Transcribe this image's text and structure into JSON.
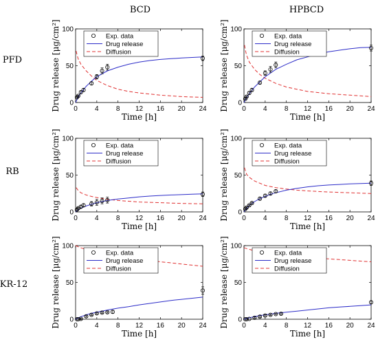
{
  "column_titles": [
    "BCD",
    "HPBCD"
  ],
  "row_labels": [
    "PFD",
    "RB",
    "KR-12"
  ],
  "xlabel": "Time [h]",
  "ylabel": "Drug release [μg/cm²]",
  "legend": {
    "exp": "Exp. data",
    "release": "Drug release",
    "diffusion": "Diffusion"
  },
  "colors": {
    "release": "#2b2bc8",
    "diffusion": "#e03030",
    "exp": "#000000"
  },
  "chart_data": [
    {
      "type": "line",
      "panel": "PFD BCD",
      "xlim": [
        0,
        24
      ],
      "ylim": [
        0,
        100
      ],
      "xticks": [
        0,
        4,
        8,
        12,
        16,
        20,
        24
      ],
      "yticks": [
        0,
        50,
        100
      ],
      "legend_position": "top-right",
      "exp_data": [
        [
          0.25,
          7
        ],
        [
          0.5,
          9
        ],
        [
          1,
          14
        ],
        [
          1.5,
          17
        ],
        [
          3,
          26
        ],
        [
          4,
          35
        ],
        [
          5,
          43
        ],
        [
          6,
          48
        ],
        [
          24,
          60
        ]
      ],
      "exp_err": [
        1,
        1,
        2,
        2,
        2,
        3,
        4,
        4,
        3
      ],
      "release_curve": [
        [
          0,
          0
        ],
        [
          0.5,
          8
        ],
        [
          1,
          13
        ],
        [
          2,
          22
        ],
        [
          3,
          29
        ],
        [
          4,
          35
        ],
        [
          5,
          39
        ],
        [
          6,
          43
        ],
        [
          8,
          48
        ],
        [
          10,
          52
        ],
        [
          12,
          55
        ],
        [
          14,
          57
        ],
        [
          16,
          58.5
        ],
        [
          18,
          59.5
        ],
        [
          20,
          60.5
        ],
        [
          22,
          61.2
        ],
        [
          24,
          62
        ]
      ],
      "diffusion_curve": [
        [
          0.1,
          70
        ],
        [
          0.3,
          64
        ],
        [
          0.5,
          59
        ],
        [
          1,
          52
        ],
        [
          2,
          43
        ],
        [
          3,
          36
        ],
        [
          4,
          30
        ],
        [
          6,
          23
        ],
        [
          8,
          18
        ],
        [
          10,
          15
        ],
        [
          12,
          13
        ],
        [
          16,
          10
        ],
        [
          20,
          8
        ],
        [
          24,
          7
        ]
      ]
    },
    {
      "type": "line",
      "panel": "PFD HPBCD",
      "xlim": [
        0,
        24
      ],
      "ylim": [
        0,
        100
      ],
      "xticks": [
        0,
        4,
        8,
        12,
        16,
        20,
        24
      ],
      "yticks": [
        0,
        50,
        100
      ],
      "legend_position": "top-right",
      "exp_data": [
        [
          0.25,
          5
        ],
        [
          0.5,
          8
        ],
        [
          1,
          13
        ],
        [
          1.5,
          17
        ],
        [
          3,
          27
        ],
        [
          4,
          40
        ],
        [
          5,
          45
        ],
        [
          6,
          51
        ],
        [
          24,
          74
        ]
      ],
      "exp_err": [
        1,
        1,
        2,
        2,
        2,
        3,
        4,
        4,
        4
      ],
      "release_curve": [
        [
          0,
          0
        ],
        [
          0.5,
          7
        ],
        [
          1,
          12
        ],
        [
          2,
          21
        ],
        [
          3,
          28
        ],
        [
          4,
          35
        ],
        [
          5,
          40
        ],
        [
          6,
          45
        ],
        [
          8,
          52
        ],
        [
          10,
          58
        ],
        [
          12,
          62
        ],
        [
          14,
          66
        ],
        [
          16,
          69
        ],
        [
          18,
          71
        ],
        [
          20,
          73
        ],
        [
          22,
          74.5
        ],
        [
          24,
          75
        ]
      ],
      "diffusion_curve": [
        [
          0.1,
          78
        ],
        [
          0.3,
          70
        ],
        [
          0.5,
          64
        ],
        [
          1,
          55
        ],
        [
          2,
          45
        ],
        [
          3,
          38
        ],
        [
          4,
          33
        ],
        [
          6,
          26
        ],
        [
          8,
          21
        ],
        [
          10,
          18
        ],
        [
          12,
          15
        ],
        [
          16,
          12
        ],
        [
          20,
          10
        ],
        [
          24,
          8
        ]
      ]
    },
    {
      "type": "line",
      "panel": "RB BCD",
      "xlim": [
        0,
        24
      ],
      "ylim": [
        0,
        100
      ],
      "xticks": [
        0,
        4,
        8,
        12,
        16,
        20,
        24
      ],
      "yticks": [
        0,
        50,
        100
      ],
      "legend_position": "top-right",
      "exp_data": [
        [
          0.25,
          3
        ],
        [
          0.5,
          5
        ],
        [
          1,
          7
        ],
        [
          1.5,
          9
        ],
        [
          3,
          11
        ],
        [
          4,
          13
        ],
        [
          5,
          15
        ],
        [
          6,
          16
        ],
        [
          24,
          24
        ]
      ],
      "exp_err": [
        1,
        1,
        2,
        2,
        3,
        4,
        4,
        4,
        3
      ],
      "release_curve": [
        [
          0,
          0
        ],
        [
          0.5,
          3
        ],
        [
          1,
          5
        ],
        [
          2,
          8
        ],
        [
          3,
          10.5
        ],
        [
          4,
          12.5
        ],
        [
          5,
          14
        ],
        [
          6,
          15.5
        ],
        [
          8,
          17.5
        ],
        [
          10,
          19
        ],
        [
          12,
          20.5
        ],
        [
          14,
          21.5
        ],
        [
          16,
          22.3
        ],
        [
          18,
          23
        ],
        [
          20,
          23.5
        ],
        [
          22,
          24
        ],
        [
          24,
          24.5
        ]
      ],
      "diffusion_curve": [
        [
          0.1,
          33
        ],
        [
          0.3,
          31
        ],
        [
          0.5,
          29
        ],
        [
          1,
          26
        ],
        [
          2,
          23
        ],
        [
          3,
          21
        ],
        [
          4,
          19.5
        ],
        [
          6,
          17
        ],
        [
          8,
          15.5
        ],
        [
          10,
          14.5
        ],
        [
          12,
          13.5
        ],
        [
          16,
          12.5
        ],
        [
          20,
          11.5
        ],
        [
          24,
          11
        ]
      ]
    },
    {
      "type": "line",
      "panel": "RB HPBCD",
      "xlim": [
        0,
        24
      ],
      "ylim": [
        0,
        100
      ],
      "xticks": [
        0,
        4,
        8,
        12,
        16,
        20,
        24
      ],
      "yticks": [
        0,
        50,
        100
      ],
      "legend_position": "top-right",
      "exp_data": [
        [
          0.25,
          4
        ],
        [
          0.5,
          6
        ],
        [
          1,
          9
        ],
        [
          1.5,
          12
        ],
        [
          3,
          18
        ],
        [
          4,
          22
        ],
        [
          5,
          25
        ],
        [
          6,
          28
        ],
        [
          24,
          39
        ]
      ],
      "exp_err": [
        1,
        1,
        1,
        1,
        2,
        2,
        2,
        2,
        3
      ],
      "release_curve": [
        [
          0,
          0
        ],
        [
          0.5,
          5
        ],
        [
          1,
          9
        ],
        [
          2,
          14
        ],
        [
          3,
          18
        ],
        [
          4,
          21
        ],
        [
          5,
          24
        ],
        [
          6,
          26
        ],
        [
          8,
          29.5
        ],
        [
          10,
          32
        ],
        [
          12,
          34
        ],
        [
          14,
          35.5
        ],
        [
          16,
          36.5
        ],
        [
          18,
          37.3
        ],
        [
          20,
          38
        ],
        [
          22,
          38.5
        ],
        [
          24,
          39
        ]
      ],
      "diffusion_curve": [
        [
          0.1,
          60
        ],
        [
          0.3,
          55
        ],
        [
          0.5,
          51
        ],
        [
          1,
          47
        ],
        [
          2,
          42
        ],
        [
          3,
          39
        ],
        [
          4,
          36
        ],
        [
          6,
          33
        ],
        [
          8,
          31
        ],
        [
          10,
          29.5
        ],
        [
          12,
          28.5
        ],
        [
          16,
          27
        ],
        [
          20,
          26
        ],
        [
          24,
          25
        ]
      ]
    },
    {
      "type": "line",
      "panel": "KR-12 BCD",
      "xlim": [
        0,
        24
      ],
      "ylim": [
        0,
        100
      ],
      "xticks": [
        0,
        4,
        8,
        12,
        16,
        20,
        24
      ],
      "yticks": [
        0,
        50,
        100
      ],
      "legend_position": "top-right",
      "exp_data": [
        [
          0.25,
          0
        ],
        [
          0.5,
          0
        ],
        [
          1,
          0.5
        ],
        [
          2,
          4
        ],
        [
          3,
          6
        ],
        [
          4,
          8
        ],
        [
          5,
          9
        ],
        [
          6,
          9.5
        ],
        [
          7,
          10
        ],
        [
          24,
          39
        ]
      ],
      "exp_err": [
        0,
        0,
        1,
        1,
        1,
        1,
        1,
        1,
        2,
        5
      ],
      "release_curve": [
        [
          0,
          0
        ],
        [
          0.5,
          2
        ],
        [
          1,
          3.5
        ],
        [
          2,
          6
        ],
        [
          3,
          8
        ],
        [
          4,
          9.5
        ],
        [
          5,
          11
        ],
        [
          6,
          12.5
        ],
        [
          8,
          15
        ],
        [
          10,
          17
        ],
        [
          12,
          19.5
        ],
        [
          14,
          21.5
        ],
        [
          16,
          23.5
        ],
        [
          18,
          25.5
        ],
        [
          20,
          27
        ],
        [
          22,
          28.5
        ],
        [
          24,
          30
        ]
      ],
      "diffusion_curve": [
        [
          0,
          100
        ],
        [
          1,
          97
        ],
        [
          2,
          95
        ],
        [
          4,
          92
        ],
        [
          6,
          89
        ],
        [
          8,
          87
        ],
        [
          10,
          84
        ],
        [
          12,
          82
        ],
        [
          14,
          80
        ],
        [
          16,
          78
        ],
        [
          18,
          76.5
        ],
        [
          20,
          75
        ],
        [
          22,
          73.5
        ],
        [
          24,
          72
        ]
      ]
    },
    {
      "type": "line",
      "panel": "KR-12 HPBCD",
      "xlim": [
        0,
        24
      ],
      "ylim": [
        0,
        100
      ],
      "xticks": [
        0,
        4,
        8,
        12,
        16,
        20,
        24
      ],
      "yticks": [
        0,
        50,
        100
      ],
      "legend_position": "top-right",
      "exp_data": [
        [
          0.25,
          0
        ],
        [
          0.5,
          0
        ],
        [
          1,
          0.5
        ],
        [
          2,
          2
        ],
        [
          3,
          3.5
        ],
        [
          4,
          5
        ],
        [
          5,
          6
        ],
        [
          6,
          7
        ],
        [
          7,
          7.5
        ],
        [
          24,
          23
        ]
      ],
      "exp_err": [
        0,
        0,
        0,
        1,
        1,
        1,
        1,
        1,
        1,
        2
      ],
      "release_curve": [
        [
          0,
          0
        ],
        [
          0.5,
          1
        ],
        [
          1,
          2
        ],
        [
          2,
          3.5
        ],
        [
          3,
          5
        ],
        [
          4,
          6
        ],
        [
          5,
          7
        ],
        [
          6,
          8
        ],
        [
          8,
          9.5
        ],
        [
          10,
          11
        ],
        [
          12,
          12.5
        ],
        [
          14,
          14
        ],
        [
          16,
          15.5
        ],
        [
          18,
          16.5
        ],
        [
          20,
          17.5
        ],
        [
          22,
          18.5
        ],
        [
          24,
          19.5
        ]
      ],
      "diffusion_curve": [
        [
          0,
          97
        ],
        [
          1,
          95
        ],
        [
          2,
          93
        ],
        [
          4,
          91
        ],
        [
          6,
          89
        ],
        [
          8,
          87
        ],
        [
          10,
          85.5
        ],
        [
          12,
          84
        ],
        [
          14,
          83
        ],
        [
          16,
          82
        ],
        [
          18,
          81
        ],
        [
          20,
          80
        ],
        [
          22,
          79
        ],
        [
          24,
          78
        ]
      ]
    }
  ]
}
